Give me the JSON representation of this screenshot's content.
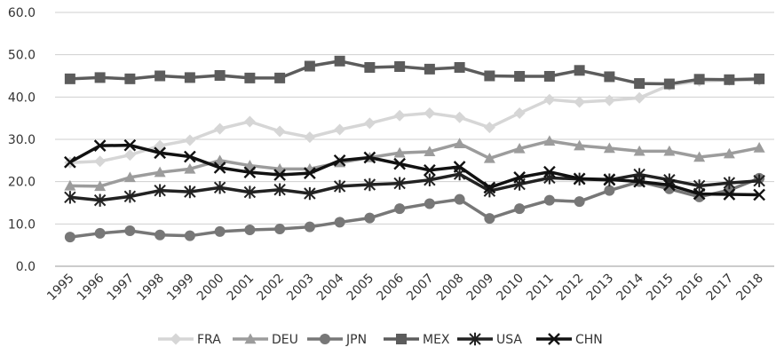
{
  "chart_data": {
    "type": "line",
    "title": "",
    "xlabel": "",
    "ylabel": "",
    "ylim": [
      0,
      60
    ],
    "yticks": [
      "0.0",
      "10.0",
      "20.0",
      "30.0",
      "40.0",
      "50.0",
      "60.0"
    ],
    "grid": true,
    "legend_position": "bottom",
    "categories": [
      "1995",
      "1996",
      "1997",
      "1998",
      "1999",
      "2000",
      "2001",
      "2002",
      "2003",
      "2004",
      "2005",
      "2006",
      "2007",
      "2008",
      "2009",
      "2010",
      "2011",
      "2012",
      "2013",
      "2014",
      "2015",
      "2016",
      "2017",
      "2018"
    ],
    "series": [
      {
        "name": "FRA",
        "color": "#d6d6d6",
        "marker": "diamond",
        "values": [
          24.5,
          24.8,
          26.3,
          28.5,
          29.8,
          32.5,
          34.2,
          31.9,
          30.5,
          32.3,
          33.8,
          35.6,
          36.2,
          35.2,
          32.8,
          36.2,
          39.4,
          38.8,
          39.2,
          39.8,
          42.8,
          43.8,
          44.0,
          44.0
        ]
      },
      {
        "name": "DEU",
        "color": "#9c9c9c",
        "marker": "triangle",
        "values": [
          19.0,
          18.9,
          21.0,
          22.2,
          23.0,
          25.0,
          23.8,
          23.0,
          23.0,
          24.5,
          25.7,
          26.8,
          27.1,
          29.0,
          25.5,
          27.8,
          29.6,
          28.5,
          27.9,
          27.2,
          27.2,
          25.8,
          26.6,
          28.0
        ]
      },
      {
        "name": "JPN",
        "color": "#777777",
        "marker": "circle",
        "values": [
          6.9,
          7.8,
          8.4,
          7.4,
          7.2,
          8.2,
          8.6,
          8.8,
          9.3,
          10.4,
          11.4,
          13.6,
          14.8,
          15.8,
          11.3,
          13.6,
          15.6,
          15.3,
          17.9,
          20.0,
          18.3,
          16.4,
          18.0,
          20.8
        ]
      },
      {
        "name": "MEX",
        "color": "#5c5c5c",
        "marker": "square",
        "values": [
          44.3,
          44.6,
          44.3,
          45.0,
          44.6,
          45.1,
          44.5,
          44.5,
          47.3,
          48.5,
          47.0,
          47.2,
          46.6,
          47.0,
          45.0,
          44.9,
          44.9,
          46.3,
          44.8,
          43.2,
          43.1,
          44.2,
          44.1,
          44.3
        ]
      },
      {
        "name": "USA",
        "color": "#222222",
        "marker": "asterisk",
        "values": [
          16.3,
          15.6,
          16.5,
          17.9,
          17.6,
          18.6,
          17.5,
          18.1,
          17.2,
          18.9,
          19.3,
          19.6,
          20.4,
          21.8,
          17.8,
          19.4,
          20.9,
          20.6,
          20.4,
          21.7,
          20.4,
          19.0,
          19.7,
          20.2
        ]
      },
      {
        "name": "CHN",
        "color": "#111111",
        "marker": "x",
        "values": [
          24.6,
          28.5,
          28.6,
          26.8,
          25.9,
          23.3,
          22.2,
          21.6,
          22.0,
          25.0,
          25.7,
          24.2,
          22.7,
          23.5,
          18.6,
          21.0,
          22.3,
          20.7,
          20.5,
          20.0,
          19.2,
          17.1,
          17.0,
          16.9
        ]
      }
    ]
  }
}
